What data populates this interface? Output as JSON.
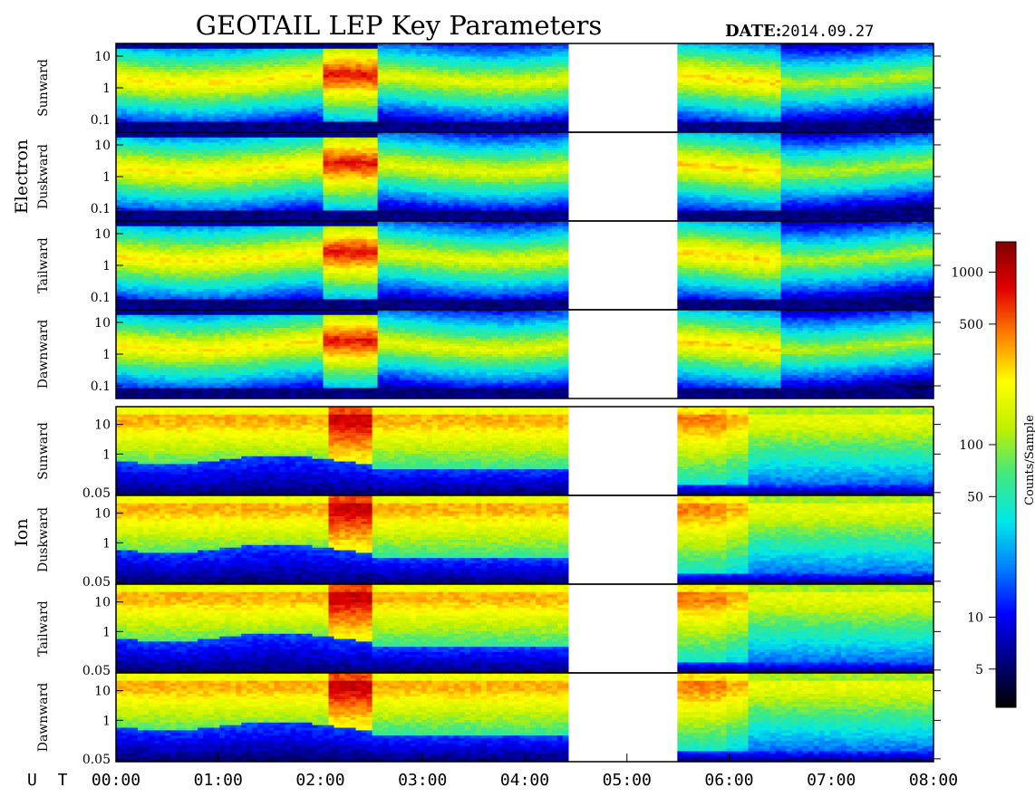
{
  "header": {
    "title": "GEOTAIL LEP Key Parameters",
    "date_label": "DATE:",
    "date_value": "2014.09.27"
  },
  "groups": [
    {
      "label": "Electron"
    },
    {
      "label": "Ion"
    }
  ],
  "colorbar": {
    "label": "Counts/Sample",
    "ticks": [
      "1000",
      "500",
      "100",
      "50",
      "10",
      "5"
    ],
    "tick_values": [
      1000,
      500,
      100,
      50,
      10,
      5
    ],
    "range": [
      3,
      1500
    ],
    "scale": "log",
    "colormap": [
      "#000000",
      "#00007f",
      "#0000ff",
      "#0080ff",
      "#00e8e8",
      "#40e880",
      "#c0f000",
      "#ffff00",
      "#ff8000",
      "#e00000",
      "#800000"
    ]
  },
  "xaxis": {
    "label": "U T",
    "ticks": [
      "00:00",
      "01:00",
      "02:00",
      "03:00",
      "04:00",
      "05:00",
      "06:00",
      "07:00",
      "08:00"
    ],
    "range_hours": [
      0,
      8
    ]
  },
  "chart_data": {
    "type": "heatmap",
    "title": "GEOTAIL LEP Key Parameters",
    "date": "2014.09.27",
    "x": {
      "label": "U T",
      "unit": "hours",
      "range": [
        0,
        8
      ],
      "ticks": [
        "00:00",
        "01:00",
        "02:00",
        "03:00",
        "04:00",
        "05:00",
        "06:00",
        "07:00",
        "08:00"
      ]
    },
    "data_gap_hours": [
      4.42,
      5.47
    ],
    "color_scale": {
      "label": "Counts/Sample",
      "scale": "log",
      "range": [
        3,
        1500
      ],
      "ticks": [
        1000,
        500,
        100,
        50,
        10,
        5
      ]
    },
    "panels": [
      {
        "group": "Electron",
        "direction": "Sunward",
        "y_scale": "log",
        "y_ticks": [
          "10",
          "1",
          "0.1"
        ],
        "y_tick_values": [
          10,
          1,
          0.1
        ],
        "y_range": [
          0.04,
          25
        ]
      },
      {
        "group": "Electron",
        "direction": "Duskward",
        "y_scale": "log",
        "y_ticks": [
          "10",
          "1",
          "0.1"
        ],
        "y_tick_values": [
          10,
          1,
          0.1
        ],
        "y_range": [
          0.04,
          25
        ]
      },
      {
        "group": "Electron",
        "direction": "Tailward",
        "y_scale": "log",
        "y_ticks": [
          "10",
          "1",
          "0.1"
        ],
        "y_tick_values": [
          10,
          1,
          0.1
        ],
        "y_range": [
          0.04,
          25
        ]
      },
      {
        "group": "Electron",
        "direction": "Dawnward",
        "y_scale": "log",
        "y_ticks": [
          "10",
          "1",
          "0.1"
        ],
        "y_tick_values": [
          10,
          1,
          0.1
        ],
        "y_range": [
          0.04,
          25
        ]
      },
      {
        "group": "Ion",
        "direction": "Sunward",
        "y_scale": "log",
        "y_ticks": [
          "10",
          "1",
          "0.05"
        ],
        "y_tick_values": [
          10,
          1,
          0.05
        ],
        "y_range": [
          0.04,
          40
        ]
      },
      {
        "group": "Ion",
        "direction": "Duskward",
        "y_scale": "log",
        "y_ticks": [
          "10",
          "1",
          "0.05"
        ],
        "y_tick_values": [
          10,
          1,
          0.05
        ],
        "y_range": [
          0.04,
          40
        ]
      },
      {
        "group": "Ion",
        "direction": "Tailward",
        "y_scale": "log",
        "y_ticks": [
          "10",
          "1",
          "0.05"
        ],
        "y_tick_values": [
          10,
          1,
          0.05
        ],
        "y_range": [
          0.04,
          40
        ]
      },
      {
        "group": "Ion",
        "direction": "Dawnward",
        "y_scale": "log",
        "y_ticks": [
          "10",
          "1",
          "0.05"
        ],
        "y_tick_values": [
          10,
          1,
          0.05
        ],
        "y_range": [
          0.04,
          40
        ]
      }
    ]
  }
}
